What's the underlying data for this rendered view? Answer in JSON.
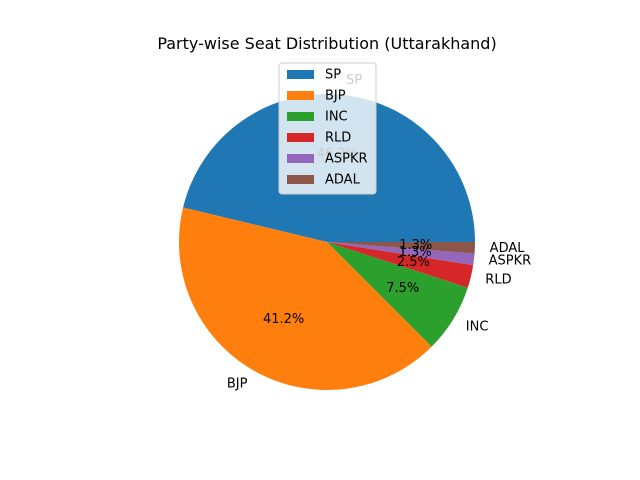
{
  "chart_data": {
    "type": "pie",
    "title": "Party-wise Seat Distribution (Uttarakhand)",
    "categories": [
      "SP",
      "BJP",
      "INC",
      "RLD",
      "ASPKR",
      "ADAL"
    ],
    "values": [
      37,
      33,
      6,
      2,
      1,
      1
    ],
    "percent_labels": [
      "46.2%",
      "41.2%",
      "7.5%",
      "2.5%",
      "1.3%",
      "1.3%"
    ],
    "colors": [
      "#1f77b4",
      "#ff7f0e",
      "#2ca02c",
      "#d62728",
      "#9467bd",
      "#8c564b"
    ],
    "start_angle_deg": 0,
    "direction": "counterclockwise",
    "legend": {
      "placement": "upper center",
      "entries": [
        "SP",
        "BJP",
        "INC",
        "RLD",
        "ASPKR",
        "ADAL"
      ]
    }
  }
}
